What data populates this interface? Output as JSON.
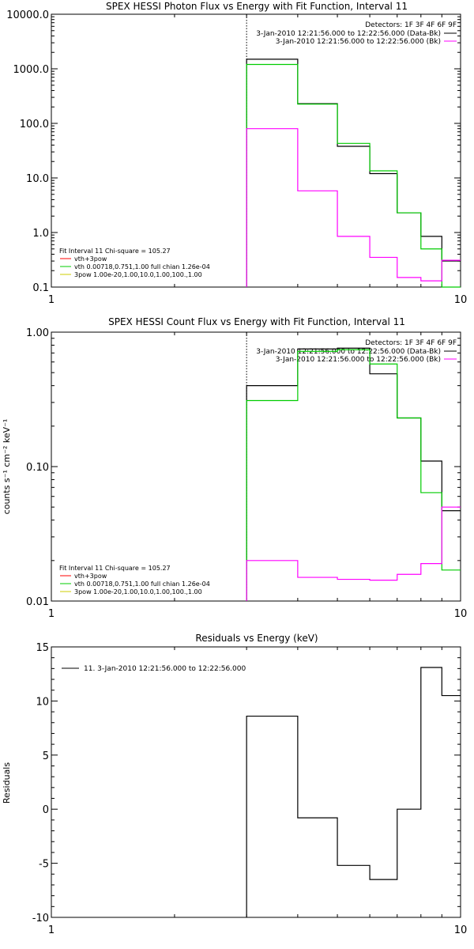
{
  "colors": {
    "data": "#000000",
    "bk": "#ff00ff",
    "vth_3pow": "#ff0000",
    "vth": "#00cc00",
    "pow3": "#cccc00"
  },
  "chart_data": [
    {
      "type": "line",
      "title": "SPEX HESSI Photon Flux vs Energy with Fit Function, Interval 11",
      "xlabel": "",
      "ylabel": "",
      "xscale": "log",
      "yscale": "log",
      "xlim": [
        1,
        10
      ],
      "ylim": [
        0.1,
        10000
      ],
      "xticks": [
        "1",
        "10"
      ],
      "yticks": [
        "0.1",
        "1.0",
        "10.0",
        "100.0",
        "1000.0",
        "10000.0"
      ],
      "header": {
        "detectors": "Detectors: 1F 3F 4F 6F 9F",
        "data_label": "3-Jan-2010 12:21:56.000 to 12:22:56.000 (Data-Bk)",
        "bk_label": "3-Jan-2010 12:21:56.000 to 12:22:56.000 (Bk)"
      },
      "fit_info": {
        "title": "Fit Interval 11    Chi-square = 105.27",
        "lines": [
          "vth+3pow",
          "vth 0.00718,0.751,1.00  full chian 1.26e-04",
          "3pow 1.00e-20,1.00,10.0,1.00,100.,1.00"
        ]
      },
      "marker_energy": 3,
      "edges": [
        3,
        4,
        5,
        6,
        7,
        8,
        9,
        10
      ],
      "series": [
        {
          "name": "Data-Bk",
          "values": [
            1500,
            230,
            38,
            12,
            2.3,
            0.85,
            0.3
          ]
        },
        {
          "name": "vth",
          "values": [
            1200,
            225,
            43,
            13.5,
            2.3,
            0.5,
            0.1
          ]
        },
        {
          "name": "Bk",
          "values": [
            80,
            5.8,
            0.85,
            0.35,
            0.15,
            0.13,
            0.31
          ]
        }
      ]
    },
    {
      "type": "line",
      "title": "SPEX HESSI Count Flux vs Energy with Fit Function, Interval 11",
      "xlabel": "",
      "ylabel": "counts s⁻¹ cm⁻² keV⁻¹",
      "xscale": "log",
      "yscale": "log",
      "xlim": [
        1,
        10
      ],
      "ylim": [
        0.01,
        1.0
      ],
      "xticks": [
        "1",
        "10"
      ],
      "yticks": [
        "0.01",
        "0.10",
        "1.00"
      ],
      "header": {
        "detectors": "Detectors: 1F 3F 4F 6F 9F",
        "data_label": "3-Jan-2010 12:21:56.000 to 12:22:56.000 (Data-Bk)",
        "bk_label": "3-Jan-2010 12:21:56.000 to 12:22:56.000 (Bk)"
      },
      "fit_info": {
        "title": "Fit Interval 11    Chi-square = 105.27",
        "lines": [
          "vth+3pow",
          "vth 0.00718,0.751,1.00  full chian 1.26e-04",
          "3pow 1.00e-20,1.00,10.0,1.00,100.,1.00"
        ]
      },
      "marker_energy": 3,
      "edges": [
        3,
        4,
        5,
        6,
        7,
        8,
        9,
        10
      ],
      "series": [
        {
          "name": "Data-Bk",
          "values": [
            0.4,
            0.75,
            0.76,
            0.49,
            0.23,
            0.11,
            0.047
          ]
        },
        {
          "name": "vth",
          "values": [
            0.31,
            0.72,
            0.74,
            0.58,
            0.23,
            0.064,
            0.017
          ]
        },
        {
          "name": "Bk",
          "values": [
            0.02,
            0.015,
            0.0145,
            0.0143,
            0.0158,
            0.019,
            0.05
          ]
        }
      ]
    },
    {
      "type": "line",
      "title": "Residuals vs Energy (keV)",
      "xlabel": "",
      "ylabel": "Residuals",
      "xscale": "log",
      "yscale": "linear",
      "xlim": [
        1,
        10
      ],
      "ylim": [
        -10,
        15
      ],
      "xticks": [
        "1",
        "10"
      ],
      "yticks": [
        "-10",
        "-5",
        "0",
        "5",
        "10",
        "15"
      ],
      "legend": "11.  3-Jan-2010 12:21:56.000 to 12:22:56.000",
      "edges": [
        3,
        4,
        5,
        6,
        7,
        8,
        9,
        10
      ],
      "values": [
        8.6,
        -0.8,
        -5.2,
        -6.5,
        0.0,
        13.1,
        10.5
      ]
    }
  ]
}
